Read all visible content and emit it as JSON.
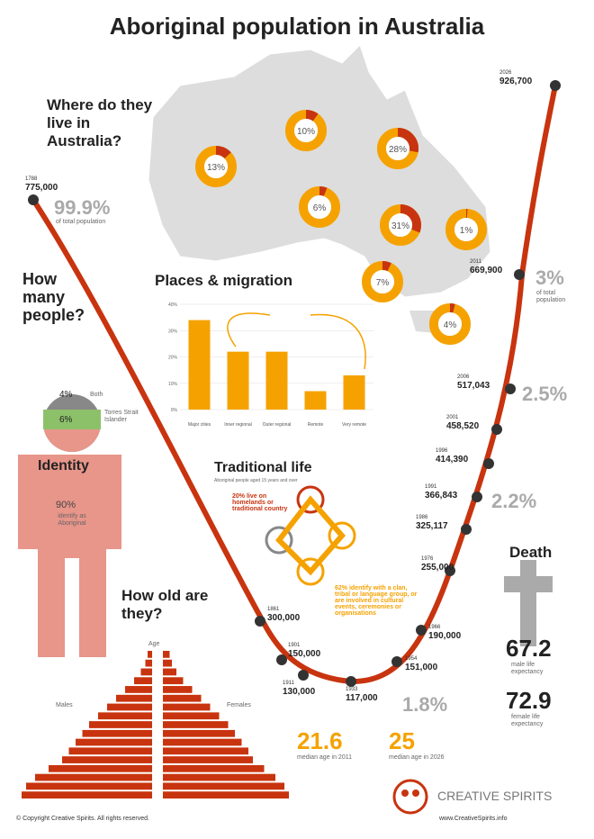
{
  "title": "Aboriginal population in Australia",
  "where_title": "Where do they live in Australia?",
  "states": [
    {
      "value": 13,
      "label": "13%"
    },
    {
      "value": 10,
      "label": "10%"
    },
    {
      "value": 28,
      "label": "28%"
    },
    {
      "value": 6,
      "label": "6%"
    },
    {
      "value": 31,
      "label": "31%"
    },
    {
      "value": 1,
      "label": "1%"
    },
    {
      "value": 7,
      "label": "7%"
    },
    {
      "value": 4,
      "label": "4%"
    }
  ],
  "how_many": "How many people?",
  "population": [
    {
      "year": "1788",
      "count": "775,000"
    },
    {
      "year": "1861",
      "count": "300,000"
    },
    {
      "year": "1901",
      "count": "150,000"
    },
    {
      "year": "1911",
      "count": "130,000"
    },
    {
      "year": "1933",
      "count": "117,000"
    },
    {
      "year": "1954",
      "count": "151,000"
    },
    {
      "year": "1966",
      "count": "190,000"
    },
    {
      "year": "1976",
      "count": "255,000"
    },
    {
      "year": "1986",
      "count": "325,117"
    },
    {
      "year": "1991",
      "count": "366,843"
    },
    {
      "year": "1996",
      "count": "414,390"
    },
    {
      "year": "2001",
      "count": "458,520"
    },
    {
      "year": "2006",
      "count": "517,043"
    },
    {
      "year": "2011",
      "count": "669,900"
    },
    {
      "year": "2026",
      "count": "926,700"
    }
  ],
  "shares": [
    {
      "text": "99.9%",
      "note": "of total population"
    },
    {
      "text": "3%",
      "note": "of total population"
    },
    {
      "text": "2.5%"
    },
    {
      "text": "2.2%"
    },
    {
      "text": "1.8%"
    }
  ],
  "places": {
    "title": "Places & migration",
    "categories": [
      "Major cities",
      "Inner regional",
      "Outer regional",
      "Remote",
      "Very remote"
    ],
    "values": [
      34,
      22,
      22,
      7,
      13
    ],
    "ylim": [
      0,
      40
    ],
    "yticks": [
      {
        "value": 0,
        "label": "0%"
      },
      {
        "value": 10,
        "label": "10%"
      },
      {
        "value": 20,
        "label": "20%"
      },
      {
        "value": 30,
        "label": "30%"
      },
      {
        "value": 40,
        "label": "40%"
      }
    ]
  },
  "identity": {
    "title": "Identity",
    "both": "4%",
    "both_label": "Both",
    "tsi": "6%",
    "tsi_label": "Torres Strait Islander",
    "aboriginal": "90%",
    "aboriginal_label": "identify as Aboriginal"
  },
  "traditional": {
    "title": "Traditional life",
    "subtitle": "Aboriginal people aged 15 years and over",
    "homelands": "20% live on homelands or traditional country",
    "clan": "62% identify with a clan, tribal or language group, or are involved in cultural events, ceremonies or organisations"
  },
  "age": {
    "title": "How old are they?",
    "axis": "Age",
    "males_label": "Males",
    "females_label": "Females",
    "xlim": [
      0,
      6
    ],
    "males": [
      5.8,
      5.6,
      5.2,
      4.6,
      4.0,
      3.7,
      3.4,
      3.1,
      2.8,
      2.4,
      2.0,
      1.6,
      1.2,
      0.8,
      0.5,
      0.3,
      0.2
    ],
    "females": [
      5.6,
      5.4,
      5.0,
      4.5,
      4.0,
      3.8,
      3.5,
      3.2,
      2.9,
      2.5,
      2.1,
      1.7,
      1.3,
      0.9,
      0.6,
      0.4,
      0.3
    ]
  },
  "median": [
    {
      "value": "21.6",
      "label": "median age in 2011"
    },
    {
      "value": "25",
      "label": "median age in 2026"
    }
  ],
  "death": {
    "title": "Death",
    "male": "67.2",
    "male_label": "male life expectancy",
    "female": "72.9",
    "female_label": "female life expectancy"
  },
  "footer": {
    "copyright": "© Copyright Creative Spirits. All rights reserved.",
    "brand": "CREATIVE SPIRITS",
    "url": "www.CreativeSpirits.info"
  }
}
